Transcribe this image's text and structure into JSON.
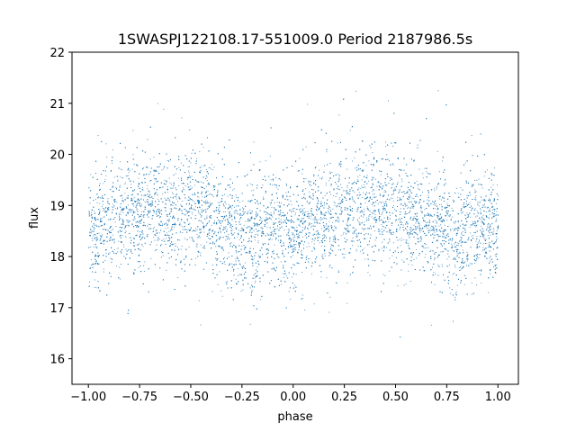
{
  "chart_data": {
    "type": "scatter",
    "title": "1SWASPJ122108.17-551009.0 Period 2187986.5s",
    "xlabel": "phase",
    "ylabel": "flux",
    "xlim": [
      -1.08,
      1.1
    ],
    "ylim": [
      15.5,
      22.0
    ],
    "x_ticks": [
      -1.0,
      -0.75,
      -0.5,
      -0.25,
      0.0,
      0.25,
      0.5,
      0.75,
      1.0
    ],
    "x_tick_labels": [
      "−1.00",
      "−0.75",
      "−0.50",
      "−0.25",
      "0.00",
      "0.25",
      "0.50",
      "0.75",
      "1.00"
    ],
    "y_ticks": [
      16,
      17,
      18,
      19,
      20,
      21,
      22
    ],
    "y_tick_labels": [
      "16",
      "17",
      "18",
      "19",
      "20",
      "21",
      "22"
    ],
    "grid": false,
    "legend": "none",
    "marker_color": "#1f77b4",
    "series": [
      {
        "phase_range": [
          -1.0,
          1.0
        ],
        "flux_profile": {
          "phase": [
            -1.0,
            -0.9,
            -0.8,
            -0.7,
            -0.6,
            -0.5,
            -0.4,
            -0.3,
            -0.2,
            -0.1,
            0.0,
            0.1,
            0.2,
            0.3,
            0.4,
            0.5,
            0.6,
            0.7,
            0.8,
            0.9,
            1.0
          ],
          "median_flux": [
            18.5,
            18.7,
            18.8,
            19.0,
            18.9,
            19.0,
            18.8,
            18.5,
            18.4,
            18.6,
            18.5,
            18.7,
            18.8,
            19.0,
            18.9,
            19.0,
            18.8,
            18.6,
            18.4,
            18.6,
            18.5
          ]
        },
        "flux_spread": 0.55,
        "min_flux": 15.75,
        "max_flux": 21.6
      }
    ]
  }
}
